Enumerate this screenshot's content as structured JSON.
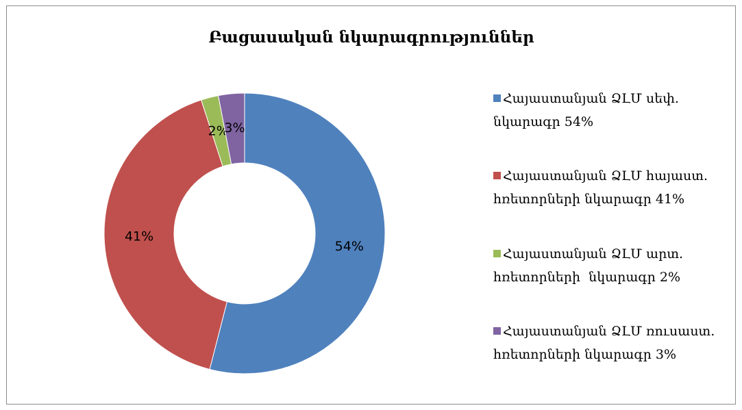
{
  "chart_data": {
    "type": "donut",
    "title": "Բացասական նկարագրություններ",
    "categories": [
      "Հայաստանյան ՁԼՄ սեփ. նկարագր 54%",
      "Հայաստանյան ՁԼՄ հայաստ. հռետորների նկարագր 41%",
      "Հայաստանյան ՁԼՄ արտ. հռետորների  նկարագր 2%",
      "Հայաստանյան ՁԼՄ ռուսաստ. հռետորների նկարագր 3%"
    ],
    "values": [
      54,
      41,
      2,
      3
    ],
    "value_labels": [
      "54%",
      "41%",
      "2%",
      "3%"
    ],
    "colors": [
      "#4f81bd",
      "#c0504d",
      "#9bbb59",
      "#8064a2"
    ],
    "legend": "right"
  }
}
